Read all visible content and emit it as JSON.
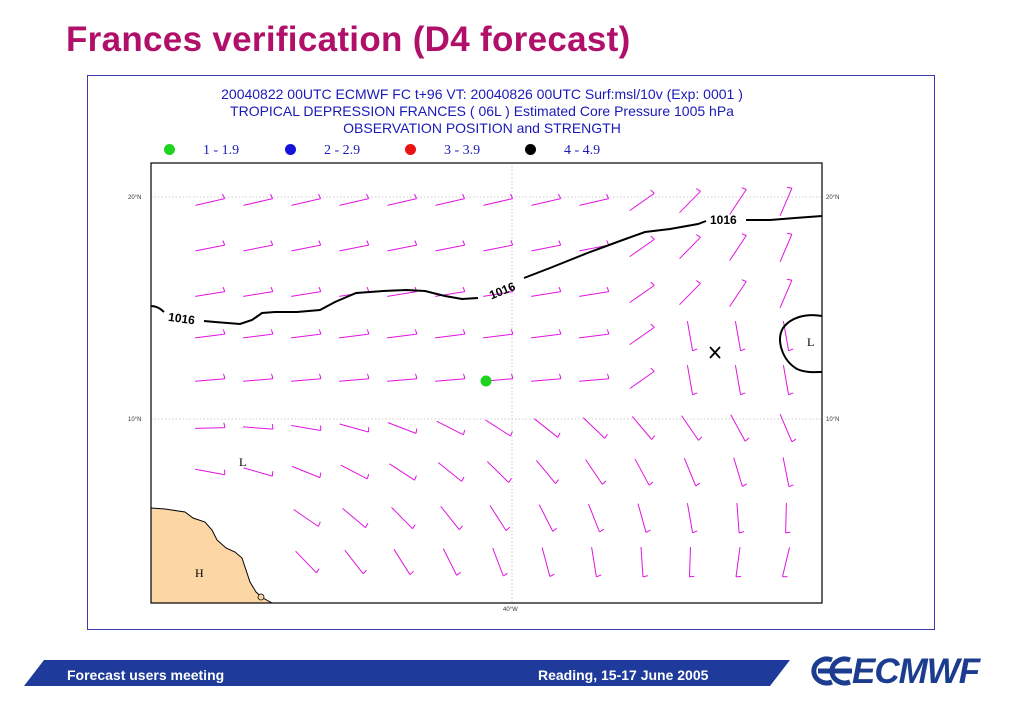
{
  "slide": {
    "title": "Frances verification (D4 forecast)"
  },
  "chart": {
    "header_line1": "20040822 00UTC ECMWF  FC t+96 VT:   20040826 00UTC Surf:msl/10v (Exp: 0001  )",
    "header_line2": "TROPICAL DEPRESSION FRANCES ( 06L ) Estimated Core Pressure 1005 hPa",
    "header_line3": "OBSERVATION POSITION and STRENGTH",
    "legend": [
      {
        "label": "1 - 1.9",
        "color": "#1ed41e"
      },
      {
        "label": "2 - 2.9",
        "color": "#1414d8"
      },
      {
        "label": "3 - 3.9",
        "color": "#e81414"
      },
      {
        "label": "4 - 4.9",
        "color": "#000000"
      }
    ],
    "lat_labels": [
      "20°N",
      "10°N"
    ],
    "lon_label": "40°W",
    "isobar_value": "1016",
    "pressure_labels": {
      "low1": "L",
      "low2": "L",
      "high": "H"
    },
    "barb_color": "#e014e0",
    "land_color": "#fcd7a5",
    "observation": {
      "category": "1 - 1.9",
      "color": "#1ed41e"
    }
  },
  "footer": {
    "left": "Forecast users meeting",
    "right": "Reading, 15-17 June 2005",
    "bar_color": "#1e3a9a"
  },
  "logo": {
    "text": "ECMWF",
    "color": "#1c3d8f"
  }
}
